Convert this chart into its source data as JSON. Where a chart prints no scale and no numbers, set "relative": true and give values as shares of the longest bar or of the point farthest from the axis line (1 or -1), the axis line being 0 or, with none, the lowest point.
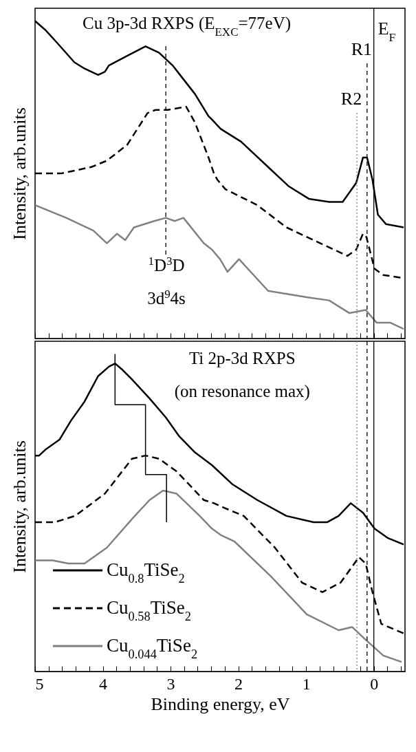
{
  "chart_data": [
    {
      "type": "line",
      "relative": true,
      "tick_labels": false,
      "legend": false,
      "ylabel": "Intensity, arb.units",
      "xlim": [
        5,
        -0.46
      ],
      "xticks": [
        5,
        {
          "value": 4.8,
          "label": null
        },
        {
          "value": 4.6,
          "label": null
        },
        {
          "value": 4.4,
          "label": null
        },
        {
          "value": 4.2,
          "label": null
        },
        4,
        {
          "value": 3.8,
          "label": null
        },
        {
          "value": 3.6,
          "label": null
        },
        {
          "value": 3.4,
          "label": null
        },
        {
          "value": 3.2,
          "label": null
        },
        3,
        {
          "value": 2.8,
          "label": null
        },
        {
          "value": 2.6,
          "label": null
        },
        {
          "value": 2.4,
          "label": null
        },
        {
          "value": 2.2,
          "label": null
        },
        2,
        {
          "value": 1.8,
          "label": null
        },
        {
          "value": 1.6,
          "label": null
        },
        {
          "value": 1.4,
          "label": null
        },
        {
          "value": 1.2,
          "label": null
        },
        1,
        {
          "value": 0.8,
          "label": null
        },
        {
          "value": 0.6,
          "label": null
        },
        {
          "value": 0.4,
          "label": null
        },
        {
          "value": 0.2,
          "label": null
        },
        0,
        {
          "value": -0.2,
          "label": null
        },
        {
          "value": -0.4,
          "label": null
        }
      ],
      "series": [
        {
          "color": "#000000",
          "line_style": "solid",
          "x": [
            5.0,
            4.84,
            4.67,
            4.42,
            4.27,
            4.07,
            3.97,
            3.91,
            3.64,
            3.37,
            3.17,
            2.97,
            2.64,
            2.44,
            2.39,
            2.26,
            1.96,
            1.56,
            1.26,
            0.96,
            0.66,
            0.46,
            0.26,
            0.16,
            0.1,
            0.02,
            -0.06,
            -0.18,
            -0.44
          ],
          "values": [
            1.0,
            0.97,
            0.93,
            0.87,
            0.85,
            0.83,
            0.84,
            0.86,
            0.89,
            0.92,
            0.9,
            0.86,
            0.77,
            0.7,
            0.69,
            0.66,
            0.62,
            0.54,
            0.48,
            0.44,
            0.43,
            0.43,
            0.49,
            0.57,
            0.57,
            0.5,
            0.39,
            0.36,
            0.35
          ]
        },
        {
          "color": "#000000",
          "line_style": "dashed",
          "x": [
            5.0,
            4.61,
            4.17,
            3.94,
            3.64,
            3.34,
            3.22,
            3.04,
            2.77,
            2.64,
            2.44,
            2.36,
            2.31,
            2.19,
            1.72,
            1.29,
            0.79,
            0.39,
            0.26,
            0.16,
            0.11,
            -0.01,
            -0.14,
            -0.44
          ],
          "values": [
            0.52,
            0.52,
            0.54,
            0.56,
            0.61,
            0.71,
            0.72,
            0.72,
            0.73,
            0.68,
            0.57,
            0.52,
            0.5,
            0.47,
            0.42,
            0.35,
            0.3,
            0.26,
            0.28,
            0.33,
            0.32,
            0.22,
            0.2,
            0.19
          ]
        },
        {
          "color": "#808080",
          "line_style": "solid",
          "x": [
            5.0,
            4.54,
            4.14,
            3.94,
            3.79,
            3.67,
            3.54,
            3.24,
            3.07,
            2.94,
            2.81,
            2.51,
            2.39,
            2.27,
            2.16,
            1.99,
            1.56,
            0.99,
            0.66,
            0.36,
            0.12,
            -0.04,
            -0.24,
            -0.44
          ],
          "values": [
            0.42,
            0.38,
            0.34,
            0.3,
            0.33,
            0.31,
            0.35,
            0.37,
            0.38,
            0.37,
            0.38,
            0.3,
            0.28,
            0.25,
            0.21,
            0.25,
            0.15,
            0.13,
            0.12,
            0.08,
            0.09,
            0.05,
            0.05,
            0.03
          ]
        }
      ],
      "ref_lines": [
        {
          "axis": "x",
          "value": 3.07,
          "line_style": "dashed",
          "color": "#000000"
        },
        {
          "axis": "x",
          "value": 0.1,
          "label": "R1",
          "line_style": "dashed",
          "color": "#000000"
        },
        {
          "axis": "x",
          "value": 0.25,
          "label": "R2",
          "line_style": "dotted",
          "color": "#808080"
        },
        {
          "axis": "x",
          "value": 0,
          "label": "E$_{F}$",
          "line_style": "solid",
          "color": "#000000"
        }
      ],
      "annotations": [
        "Cu 3p-3d RXPS (E$_{EXC}$=77eV)",
        "$^{1}$D$^{3}$D",
        "3d$^{9}$4s"
      ]
    },
    {
      "type": "line",
      "relative": true,
      "tick_labels": "x",
      "legend": "bottom left",
      "xlabel": "Binding energy, eV",
      "ylabel": "Intensity, arb.units",
      "xlim": [
        5,
        -0.46
      ],
      "xticks": [
        5,
        {
          "value": 4.8,
          "label": null
        },
        {
          "value": 4.6,
          "label": null
        },
        {
          "value": 4.4,
          "label": null
        },
        {
          "value": 4.2,
          "label": null
        },
        4,
        {
          "value": 3.8,
          "label": null
        },
        {
          "value": 3.6,
          "label": null
        },
        {
          "value": 3.4,
          "label": null
        },
        {
          "value": 3.2,
          "label": null
        },
        3,
        {
          "value": 2.8,
          "label": null
        },
        {
          "value": 2.6,
          "label": null
        },
        {
          "value": 2.4,
          "label": null
        },
        {
          "value": 2.2,
          "label": null
        },
        2,
        {
          "value": 1.8,
          "label": null
        },
        {
          "value": 1.6,
          "label": null
        },
        {
          "value": 1.4,
          "label": null
        },
        {
          "value": 1.2,
          "label": null
        },
        1,
        {
          "value": 0.8,
          "label": null
        },
        {
          "value": 0.6,
          "label": null
        },
        {
          "value": 0.4,
          "label": null
        },
        {
          "value": 0.2,
          "label": null
        },
        0,
        {
          "value": -0.2,
          "label": null
        },
        {
          "value": -0.4,
          "label": null
        }
      ],
      "series": [
        {
          "name": "Cu$_{0.8}$TiSe$_{2}$",
          "color": "#000000",
          "line_style": "solid",
          "x": [
            5.0,
            4.94,
            4.84,
            4.64,
            4.47,
            4.27,
            4.07,
            3.91,
            3.82,
            3.71,
            3.57,
            3.31,
            3.07,
            2.87,
            2.64,
            2.39,
            2.09,
            1.72,
            1.29,
            0.89,
            0.69,
            0.52,
            0.34,
            0.16,
            -0.01,
            -0.21,
            -0.44
          ],
          "values": [
            0.68,
            0.68,
            0.7,
            0.73,
            0.79,
            0.85,
            0.93,
            0.96,
            0.97,
            0.95,
            0.92,
            0.86,
            0.8,
            0.74,
            0.69,
            0.65,
            0.59,
            0.54,
            0.49,
            0.47,
            0.47,
            0.49,
            0.53,
            0.5,
            0.45,
            0.42,
            0.4
          ]
        },
        {
          "name": "Cu$_{0.58}$TiSe$_{2}$",
          "color": "#000000",
          "line_style": "dashed",
          "x": [
            5.0,
            4.71,
            4.41,
            3.97,
            3.57,
            3.37,
            3.17,
            2.91,
            2.51,
            2.36,
            2.26,
            1.92,
            1.46,
            1.06,
            0.76,
            0.49,
            0.22,
            0.12,
            0.02,
            -0.11,
            -0.44
          ],
          "values": [
            0.47,
            0.47,
            0.49,
            0.56,
            0.67,
            0.68,
            0.67,
            0.63,
            0.54,
            0.53,
            0.52,
            0.49,
            0.39,
            0.28,
            0.25,
            0.28,
            0.36,
            0.34,
            0.25,
            0.15,
            0.12
          ]
        },
        {
          "name": "Cu$_{0.044}$TiSe$_{2}$",
          "color": "#808080",
          "line_style": "solid",
          "x": [
            5.0,
            4.74,
            4.51,
            4.27,
            3.94,
            3.57,
            3.31,
            3.11,
            2.91,
            2.57,
            2.39,
            2.26,
            2.06,
            1.52,
            0.99,
            0.52,
            0.32,
            0.12,
            -0.14,
            -0.41
          ],
          "values": [
            0.35,
            0.35,
            0.34,
            0.34,
            0.39,
            0.48,
            0.54,
            0.57,
            0.56,
            0.49,
            0.45,
            0.43,
            0.41,
            0.3,
            0.18,
            0.13,
            0.14,
            0.1,
            0.05,
            0.03
          ]
        },
        {
          "type": "line",
          "color": "#000000",
          "line_style": "solid",
          "x": [
            3.82,
            3.82,
            3.37,
            3.37,
            3.06,
            3.06
          ],
          "values": [
            1.0,
            0.84,
            0.84,
            0.62,
            0.62,
            0.47
          ]
        }
      ],
      "ref_lines": [
        {
          "axis": "x",
          "value": 0.1,
          "line_style": "dashed",
          "color": "#000000"
        },
        {
          "axis": "x",
          "value": 0.25,
          "line_style": "dotted",
          "color": "#808080"
        },
        {
          "axis": "x",
          "value": 0,
          "line_style": "solid",
          "color": "#000000"
        }
      ],
      "annotations": [
        "Ti 2p-3d RXPS",
        "(on resonance max)"
      ]
    }
  ]
}
